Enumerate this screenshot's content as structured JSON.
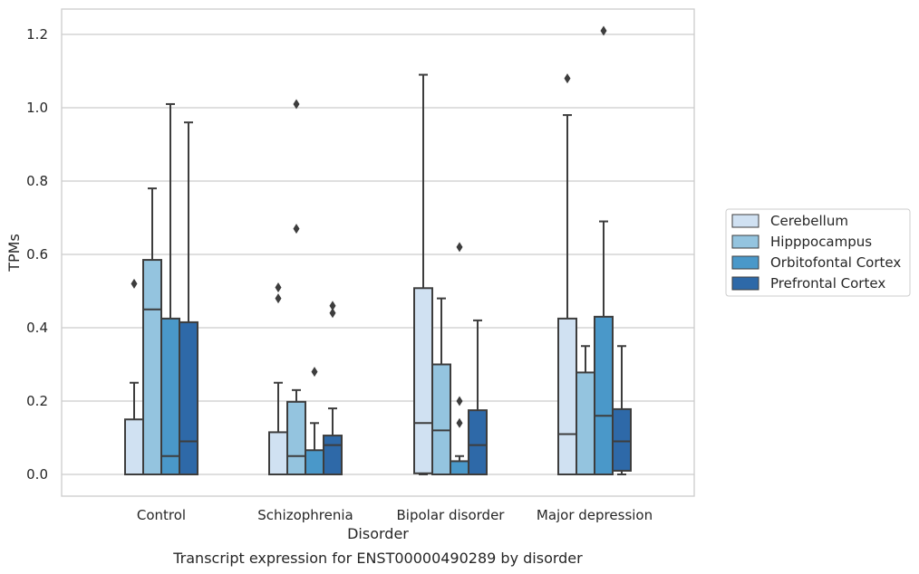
{
  "caption": "Transcript expression for ENST00000490289 by disorder",
  "chart_data": {
    "type": "box",
    "xlabel": "Disorder",
    "ylabel": "TPMs",
    "ylim": [
      -0.06,
      1.27
    ],
    "yticks": [
      "0.0",
      "0.2",
      "0.4",
      "0.6",
      "0.8",
      "1.0",
      "1.2"
    ],
    "ytick_values": [
      0.0,
      0.2,
      0.4,
      0.6,
      0.8,
      1.0,
      1.2
    ],
    "grid": true,
    "legend_position": "right",
    "categories": [
      "Control",
      "Schizophrenia",
      "Bipolar disorder",
      "Major depression"
    ],
    "series": [
      {
        "name": "Cerebellum",
        "color": "#d0e1f2",
        "boxes": [
          {
            "whisker_low": 0.0,
            "q1": 0.0,
            "median": 0.0,
            "q3": 0.15,
            "whisker_high": 0.25,
            "outliers": [
              0.52
            ]
          },
          {
            "whisker_low": 0.0,
            "q1": 0.0,
            "median": 0.0,
            "q3": 0.115,
            "whisker_high": 0.25,
            "outliers": [
              0.48,
              0.51
            ]
          },
          {
            "whisker_low": 0.0,
            "q1": 0.003,
            "median": 0.14,
            "q3": 0.508,
            "whisker_high": 1.09,
            "outliers": []
          },
          {
            "whisker_low": 0.0,
            "q1": 0.0,
            "median": 0.11,
            "q3": 0.425,
            "whisker_high": 0.98,
            "outliers": [
              1.08
            ]
          }
        ]
      },
      {
        "name": "Hipppocampus",
        "color": "#94c4df",
        "boxes": [
          {
            "whisker_low": 0.0,
            "q1": 0.0,
            "median": 0.45,
            "q3": 0.585,
            "whisker_high": 0.78,
            "outliers": []
          },
          {
            "whisker_low": 0.0,
            "q1": 0.0,
            "median": 0.05,
            "q3": 0.198,
            "whisker_high": 0.23,
            "outliers": [
              0.67,
              1.01
            ]
          },
          {
            "whisker_low": 0.0,
            "q1": 0.0,
            "median": 0.12,
            "q3": 0.3,
            "whisker_high": 0.48,
            "outliers": []
          },
          {
            "whisker_low": 0.0,
            "q1": 0.0,
            "median": 0.0,
            "q3": 0.278,
            "whisker_high": 0.35,
            "outliers": []
          }
        ]
      },
      {
        "name": "Orbitofontal Cortex",
        "color": "#4a98c9",
        "boxes": [
          {
            "whisker_low": 0.0,
            "q1": 0.0,
            "median": 0.05,
            "q3": 0.425,
            "whisker_high": 1.01,
            "outliers": []
          },
          {
            "whisker_low": 0.0,
            "q1": 0.0,
            "median": 0.0,
            "q3": 0.066,
            "whisker_high": 0.14,
            "outliers": [
              0.28
            ]
          },
          {
            "whisker_low": 0.0,
            "q1": 0.0,
            "median": 0.0,
            "q3": 0.036,
            "whisker_high": 0.05,
            "outliers": [
              0.14,
              0.2,
              0.62
            ]
          },
          {
            "whisker_low": 0.0,
            "q1": 0.0,
            "median": 0.16,
            "q3": 0.43,
            "whisker_high": 0.69,
            "outliers": [
              1.21
            ]
          }
        ]
      },
      {
        "name": "Prefrontal Cortex",
        "color": "#2e69a8",
        "boxes": [
          {
            "whisker_low": 0.0,
            "q1": 0.0,
            "median": 0.09,
            "q3": 0.415,
            "whisker_high": 0.96,
            "outliers": []
          },
          {
            "whisker_low": 0.0,
            "q1": 0.0,
            "median": 0.08,
            "q3": 0.106,
            "whisker_high": 0.18,
            "outliers": [
              0.44,
              0.46
            ]
          },
          {
            "whisker_low": 0.0,
            "q1": 0.0,
            "median": 0.08,
            "q3": 0.175,
            "whisker_high": 0.42,
            "outliers": []
          },
          {
            "whisker_low": 0.0,
            "q1": 0.01,
            "median": 0.09,
            "q3": 0.178,
            "whisker_high": 0.35,
            "outliers": []
          }
        ]
      }
    ]
  }
}
